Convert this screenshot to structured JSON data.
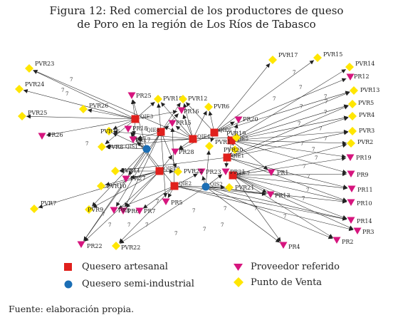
{
  "title_lines": [
    "Figura 12: Red comercial de los productores de queso",
    "de Poro en la región de Los Ríos de Tabasco"
  ],
  "source": "Fuente: elaboración propia.",
  "legend": {
    "artesanal": "Quesero artesanal",
    "semi": "Quesero semi-industrial",
    "referido": "Proveedor referido",
    "venta": "Punto de Venta"
  },
  "colors": {
    "artesanal": "#e0201c",
    "semi": "#1b6eb5",
    "referido": "#d6157e",
    "venta": "#ffe600",
    "edge": "#222222"
  },
  "edge_label": "7",
  "nodes": [
    {
      "id": "QIE3",
      "type": "artesanal",
      "label": "QIE3"
    },
    {
      "id": "QIE6",
      "type": "artesanal",
      "label": "QIE6"
    },
    {
      "id": "QIE5",
      "type": "artesanal",
      "label": "QIE5"
    },
    {
      "id": "QIE4",
      "type": "artesanal",
      "label": "QIE4"
    },
    {
      "id": "QIE1",
      "type": "artesanal",
      "label": "QIE1"
    },
    {
      "id": "QIE10",
      "type": "artesanal",
      "label": "QIE10"
    },
    {
      "id": "QIE2",
      "type": "artesanal",
      "label": "QIE2"
    },
    {
      "id": "QIE7",
      "type": "artesanal",
      "label": "QIE7"
    },
    {
      "id": "QIE8",
      "type": "artesanal",
      "label": "QIE8"
    },
    {
      "id": "QIS1",
      "type": "semi",
      "label": "QIS1"
    },
    {
      "id": "QIS2",
      "type": "semi",
      "label": "QIS2"
    },
    {
      "id": "PR25",
      "type": "referido",
      "label": "PR25"
    },
    {
      "id": "PR12",
      "type": "referido",
      "label": "PR12"
    },
    {
      "id": "PR26",
      "type": "referido",
      "label": "PR26"
    },
    {
      "id": "PR16",
      "type": "referido",
      "label": "PR16"
    },
    {
      "id": "PR15",
      "type": "referido",
      "label": "PR15"
    },
    {
      "id": "PR20",
      "type": "referido",
      "label": "PR20"
    },
    {
      "id": "PR18",
      "type": "referido",
      "label": "PR18"
    },
    {
      "id": "PR27",
      "type": "referido",
      "label": "PR27"
    },
    {
      "id": "PR17",
      "type": "referido",
      "label": "PR17"
    },
    {
      "id": "PR28",
      "type": "referido",
      "label": "PR28"
    },
    {
      "id": "PR23",
      "type": "referido",
      "label": "PR23"
    },
    {
      "id": "PR21",
      "type": "referido",
      "label": "PR21"
    },
    {
      "id": "PR1",
      "type": "referido",
      "label": "PR1"
    },
    {
      "id": "PR19",
      "type": "referido",
      "label": "PR19"
    },
    {
      "id": "PR9",
      "type": "referido",
      "label": "PR9"
    },
    {
      "id": "PR11",
      "type": "referido",
      "label": "PR11"
    },
    {
      "id": "PR10",
      "type": "referido",
      "label": "PR10"
    },
    {
      "id": "PR13",
      "type": "referido",
      "label": "PR13"
    },
    {
      "id": "PR14",
      "type": "referido",
      "label": "PR14"
    },
    {
      "id": "PR3",
      "type": "referido",
      "label": "PR3"
    },
    {
      "id": "PR2",
      "type": "referido",
      "label": "PR2"
    },
    {
      "id": "PR4",
      "type": "referido",
      "label": "PR4"
    },
    {
      "id": "PR22",
      "type": "referido",
      "label": "PR22"
    },
    {
      "id": "PR5",
      "type": "referido",
      "label": "PR5"
    },
    {
      "id": "PR6",
      "type": "referido",
      "label": "PR6"
    },
    {
      "id": "PR7",
      "type": "referido",
      "label": "PR7"
    },
    {
      "id": "PR8",
      "type": "referido",
      "label": "PR8"
    },
    {
      "id": "PVR23",
      "type": "venta",
      "label": "PVR23"
    },
    {
      "id": "PVR24",
      "type": "venta",
      "label": "PVR24"
    },
    {
      "id": "PVR25",
      "type": "venta",
      "label": "PVR25"
    },
    {
      "id": "PVR26",
      "type": "venta",
      "label": "PVR26"
    },
    {
      "id": "PVR17",
      "type": "venta",
      "label": "PVR17"
    },
    {
      "id": "PVR15",
      "type": "venta",
      "label": "PVR15"
    },
    {
      "id": "PVR14",
      "type": "venta",
      "label": "PVR14"
    },
    {
      "id": "PVR13",
      "type": "venta",
      "label": "PVR13"
    },
    {
      "id": "PVR5",
      "type": "venta",
      "label": "PVR5"
    },
    {
      "id": "PVR4",
      "type": "venta",
      "label": "PVR4"
    },
    {
      "id": "PVR3",
      "type": "venta",
      "label": "PVR3"
    },
    {
      "id": "PVR2",
      "type": "venta",
      "label": "PVR2"
    },
    {
      "id": "PVR18",
      "type": "venta",
      "label": "PVR18"
    },
    {
      "id": "PVR12",
      "type": "venta",
      "label": "PVR12"
    },
    {
      "id": "PVR6",
      "type": "venta",
      "label": "PVR6"
    },
    {
      "id": "PVR20",
      "type": "venta",
      "label": "PVR20"
    },
    {
      "id": "PVR19",
      "type": "venta",
      "label": "PVR19"
    },
    {
      "id": "PVR16",
      "type": "venta",
      "label": "PVR16"
    },
    {
      "id": "PVR8",
      "type": "venta",
      "label": "PVR8"
    },
    {
      "id": "PVR1",
      "type": "venta",
      "label": "PVR1"
    },
    {
      "id": "PVR11",
      "type": "venta",
      "label": "PVR11"
    },
    {
      "id": "PVR22",
      "type": "venta",
      "label": "PVR22"
    },
    {
      "id": "PVR10",
      "type": "venta",
      "label": "PVR10"
    },
    {
      "id": "PVR21",
      "type": "venta",
      "label": "PVR21"
    },
    {
      "id": "PVR7",
      "type": "venta",
      "label": "PVR7"
    },
    {
      "id": "PVR9",
      "type": "venta",
      "label": "PVR9"
    },
    {
      "id": "PVR22b",
      "type": "venta",
      "label": "PVR22"
    }
  ],
  "edges": [
    [
      "QIE3",
      "PVR23"
    ],
    [
      "QIE3",
      "PVR24"
    ],
    [
      "QIE3",
      "PVR25"
    ],
    [
      "QIE3",
      "PVR26"
    ],
    [
      "QIE3",
      "PR25"
    ],
    [
      "QIE3",
      "PR26"
    ],
    [
      "QIE3",
      "PVR18"
    ],
    [
      "QIE3",
      "PR16"
    ],
    [
      "QIE3",
      "PVR8"
    ],
    [
      "QIE3",
      "PR17"
    ],
    [
      "QIE3",
      "PVR16"
    ],
    [
      "QIE6",
      "PVR17"
    ],
    [
      "QIE6",
      "PVR15"
    ],
    [
      "QIE6",
      "PR12"
    ],
    [
      "QIE6",
      "PVR12"
    ],
    [
      "QIE6",
      "PVR6"
    ],
    [
      "QIE6",
      "PR20"
    ],
    [
      "QIE6",
      "PVR1"
    ],
    [
      "QIE6",
      "PR28"
    ],
    [
      "QIE6",
      "PVR13"
    ],
    [
      "QIE5",
      "PVR14"
    ],
    [
      "QIE5",
      "PVR13"
    ],
    [
      "QIE5",
      "PVR5"
    ],
    [
      "QIE5",
      "PVR4"
    ],
    [
      "QIE5",
      "PVR3"
    ],
    [
      "QIE5",
      "PVR2"
    ],
    [
      "QIE5",
      "PR19"
    ],
    [
      "QIE5",
      "PR9"
    ],
    [
      "QIE5",
      "PVR20"
    ],
    [
      "QIE5",
      "PR1"
    ],
    [
      "QIE4",
      "PR16"
    ],
    [
      "QIE4",
      "PVR6"
    ],
    [
      "QIE4",
      "PVR19"
    ],
    [
      "QIE4",
      "PVR12"
    ],
    [
      "QIE4",
      "PR15"
    ],
    [
      "QIE4",
      "PVR18"
    ],
    [
      "QIE4",
      "PR28"
    ],
    [
      "QIE4",
      "PR17"
    ],
    [
      "QIE4",
      "PVR16"
    ],
    [
      "QIE4",
      "PVR8"
    ],
    [
      "QIE4",
      "PVR23"
    ],
    [
      "QIE1",
      "PVR4"
    ],
    [
      "QIE1",
      "PVR5"
    ],
    [
      "QIE1",
      "PVR3"
    ],
    [
      "QIE1",
      "PR11"
    ],
    [
      "QIE1",
      "PR10"
    ],
    [
      "QIE1",
      "PR21"
    ],
    [
      "QIE1",
      "PVR11"
    ],
    [
      "QIE1",
      "PVR20"
    ],
    [
      "QIE1",
      "PR20"
    ],
    [
      "QIE10",
      "PVR22"
    ],
    [
      "QIE10",
      "PR27"
    ],
    [
      "QIE10",
      "PVR10"
    ],
    [
      "QIE10",
      "PR18"
    ],
    [
      "QIE10",
      "PR22"
    ],
    [
      "QIE10",
      "PVR9"
    ],
    [
      "QIE10",
      "PR6"
    ],
    [
      "QIE10",
      "PVR7"
    ],
    [
      "QIE10",
      "PR28"
    ],
    [
      "QIE10",
      "PVR11"
    ],
    [
      "QIE2",
      "PR5"
    ],
    [
      "QIE2",
      "PR8"
    ],
    [
      "QIE2",
      "PR7"
    ],
    [
      "QIE2",
      "PR23"
    ],
    [
      "QIE2",
      "PVR22b"
    ],
    [
      "QIE2",
      "PR13"
    ],
    [
      "QIE2",
      "PR14"
    ],
    [
      "QIE2",
      "PR3"
    ],
    [
      "QIE2",
      "PR15"
    ],
    [
      "QIE2",
      "PR18"
    ],
    [
      "QIE2",
      "PVR21"
    ],
    [
      "QIE7",
      "PR2"
    ],
    [
      "QIE7",
      "PR4"
    ],
    [
      "QIE7",
      "PR14"
    ],
    [
      "QIE7",
      "PR3"
    ],
    [
      "QIE7",
      "PR11"
    ],
    [
      "QIE7",
      "PR10"
    ],
    [
      "QIE7",
      "PVR2"
    ],
    [
      "QIE7",
      "PR19"
    ],
    [
      "QIE7",
      "PR9"
    ],
    [
      "QIE7",
      "PR13"
    ],
    [
      "QIE8",
      "PVR18"
    ],
    [
      "QIE8",
      "PR16"
    ],
    [
      "QIE8",
      "PVR12"
    ],
    [
      "QIE8",
      "PR15"
    ],
    [
      "QIE8",
      "PR17"
    ],
    [
      "QIE8",
      "PR22"
    ],
    [
      "QIE8",
      "PVR22"
    ],
    [
      "QIE8",
      "PR6"
    ],
    [
      "QIE8",
      "PR8"
    ],
    [
      "QIE8",
      "PR5"
    ],
    [
      "QIS1",
      "PR25"
    ],
    [
      "QIS1",
      "PR17"
    ],
    [
      "QIS1",
      "PVR8"
    ],
    [
      "QIS1",
      "PR18"
    ],
    [
      "QIS1",
      "PR27"
    ],
    [
      "QIS1",
      "PR22"
    ],
    [
      "QIS1",
      "PVR9"
    ],
    [
      "QIS1",
      "PVR16"
    ],
    [
      "QIS2",
      "PR21"
    ],
    [
      "QIS2",
      "PR23"
    ],
    [
      "QIS2",
      "PR4"
    ],
    [
      "QIS2",
      "PVR21"
    ],
    [
      "QIS2",
      "PR13"
    ],
    [
      "QIS2",
      "PVR1"
    ],
    [
      "QIS2",
      "PR10"
    ],
    [
      "QIS2",
      "PR14"
    ],
    [
      "QIS2",
      "PR2"
    ],
    [
      "QIS2",
      "PVR22b"
    ]
  ]
}
